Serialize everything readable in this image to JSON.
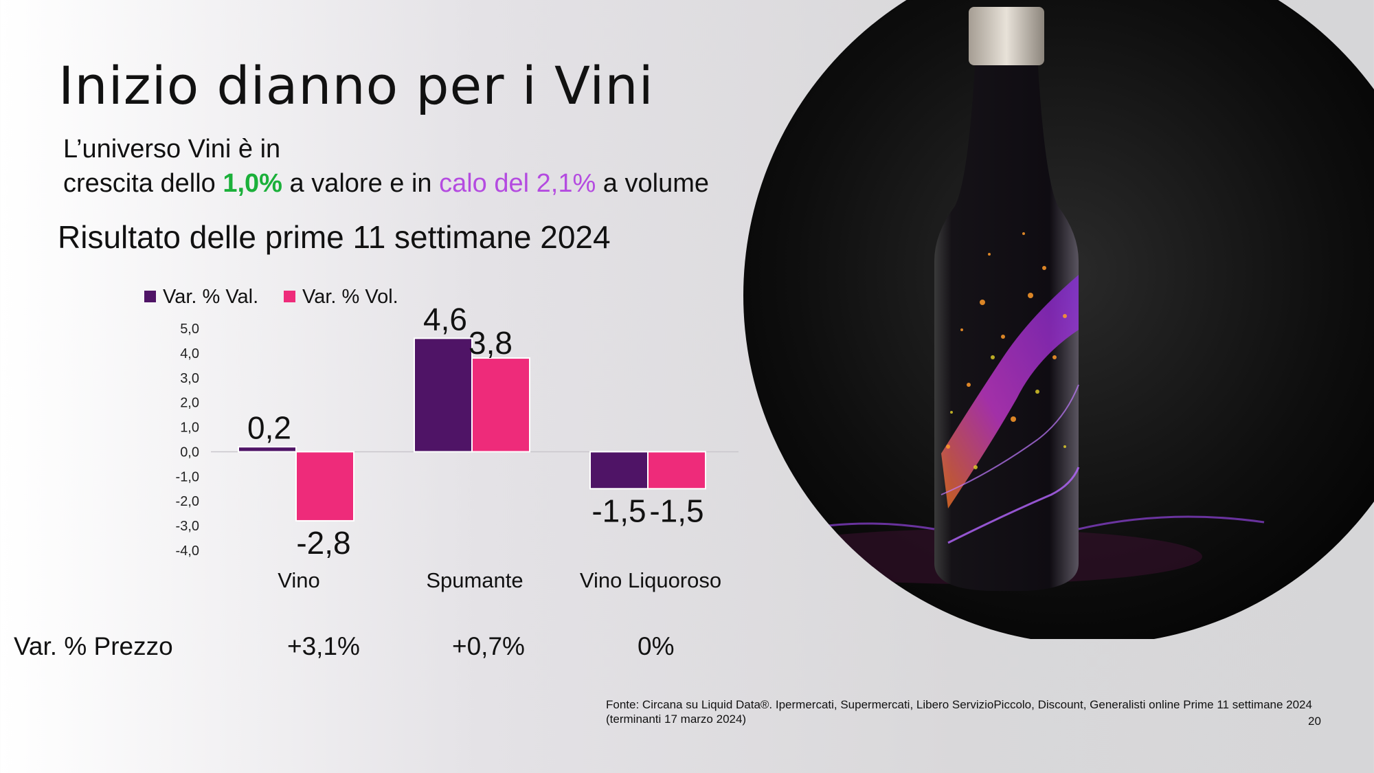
{
  "slide": {
    "title": "Inizio dianno per i Vini",
    "subtitle": {
      "line1": "L’universo Vini è in",
      "line2_pre": "crescita dello ",
      "value_growth": "1,0%",
      "line2_mid": " a valore e in ",
      "volume_decline": "calo del 2,1%",
      "line2_post": " a volume"
    },
    "result_heading": "Risultato delle prime 11 settimane 2024",
    "price_row": {
      "label": "Var. % Prezzo",
      "values": [
        "+3,1%",
        "+0,7%",
        "0%"
      ]
    },
    "source": "Fonte: Circana su Liquid Data®.  Ipermercati, Supermercati, Libero ServizioPiccolo, Discount, Generalisti online Prime 11 settimane 2024 (terminanti 17 marzo 2024)",
    "page_number": "20",
    "colors": {
      "green": "#1bb03a",
      "purple_text": "#b44be0"
    }
  },
  "chart_data": {
    "type": "bar",
    "categories": [
      "Vino",
      "Spumante",
      "Vino Liquoroso"
    ],
    "series": [
      {
        "name": "Var. % Val.",
        "values": [
          0.2,
          4.6,
          -1.5
        ],
        "labels": [
          "0,2",
          "4,6",
          "-1,5"
        ],
        "color": "#4f1466"
      },
      {
        "name": "Var. % Vol.",
        "values": [
          -2.8,
          3.8,
          -1.5
        ],
        "labels": [
          "-2,8",
          "3,8",
          "-1,5"
        ],
        "color": "#ee2b7a"
      }
    ],
    "ylim": [
      -4,
      5
    ],
    "yticks": [
      "5,0",
      "4,0",
      "3,0",
      "2,0",
      "1,0",
      "0,0",
      "-1,0",
      "-2,0",
      "-3,0",
      "-4,0"
    ],
    "legend_position": "top",
    "grid": false
  }
}
